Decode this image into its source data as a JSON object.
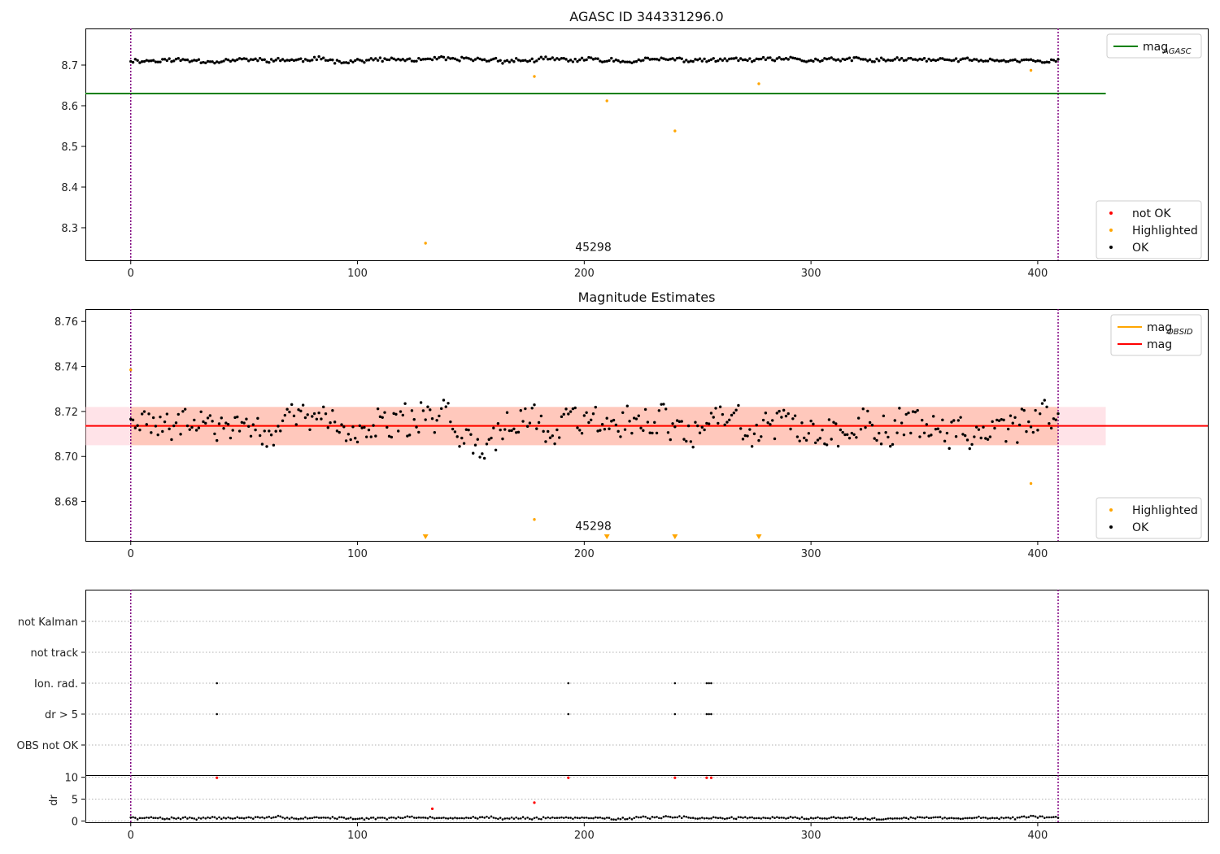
{
  "chart_data": [
    {
      "type": "scatter",
      "title": "AGASC ID 344331296.0",
      "xlim": [
        -20,
        475
      ],
      "ylim": [
        8.22,
        8.79
      ],
      "xticks": [
        0,
        100,
        200,
        300,
        400
      ],
      "xtick_labels": [
        "0",
        "100",
        "200",
        "300",
        "400"
      ],
      "yticks": [
        8.3,
        8.4,
        8.5,
        8.6,
        8.7
      ],
      "ytick_labels": [
        "8.3",
        "8.4",
        "8.5",
        "8.6",
        "8.7"
      ],
      "obs_boundaries": [
        0,
        409
      ],
      "obsid_label": "45298",
      "obsid_label_pos": {
        "x": 204,
        "y": 8.243
      },
      "reference_lines": [
        {
          "name": "mag_AGASC",
          "y": 8.63,
          "x_range": [
            -20,
            430
          ],
          "color": "#008000"
        }
      ],
      "ok_points": {
        "x0": 0,
        "x1": 409,
        "n": 410,
        "base": 8.712,
        "amp": 0.009,
        "ypoints": [
          [
            0,
            8.737
          ],
          [
            178,
            8.7
          ],
          [
            409,
            8.695
          ]
        ]
      },
      "highlighted_points": [
        {
          "x": 130,
          "y": 8.262
        },
        {
          "x": 178,
          "y": 8.672
        },
        {
          "x": 210,
          "y": 8.612
        },
        {
          "x": 240,
          "y": 8.538
        },
        {
          "x": 277,
          "y": 8.654
        },
        {
          "x": 397,
          "y": 8.687
        }
      ],
      "legend_top": [
        {
          "label": "mag",
          "sub": "AGASC",
          "kind": "line",
          "color": "#008000"
        }
      ],
      "legend_bottom": [
        {
          "label": "not OK",
          "kind": "dot",
          "color": "#ff0000"
        },
        {
          "label": "Highlighted",
          "kind": "dot",
          "color": "#ffa500"
        },
        {
          "label": "OK",
          "kind": "dot",
          "color": "#000000"
        }
      ]
    },
    {
      "type": "scatter",
      "title": "Magnitude Estimates",
      "xlim": [
        -20,
        475
      ],
      "ylim": [
        8.6625,
        8.7655
      ],
      "xticks": [
        0,
        100,
        200,
        300,
        400
      ],
      "xtick_labels": [
        "0",
        "100",
        "200",
        "300",
        "400"
      ],
      "yticks": [
        8.68,
        8.7,
        8.72,
        8.74,
        8.76
      ],
      "ytick_labels": [
        "8.68",
        "8.70",
        "8.72",
        "8.74",
        "8.76"
      ],
      "obs_boundaries": [
        0,
        409
      ],
      "obsid_label": "45298",
      "obsid_label_pos": {
        "x": 204,
        "y": 8.666
      },
      "bands": [
        {
          "y0": 8.705,
          "y1": 8.722,
          "x_range": [
            -20,
            430
          ],
          "color": "#ffc0cb",
          "opacity": 0.45
        },
        {
          "y0": 8.705,
          "y1": 8.722,
          "x_range": [
            0,
            409
          ],
          "color": "#ffa07a",
          "opacity": 0.4
        }
      ],
      "reference_lines": [
        {
          "name": "mag_OBSID",
          "y": 8.7136,
          "x_range": [
            0,
            409
          ],
          "color": "#ffa500"
        },
        {
          "name": "mag",
          "y": 8.7136,
          "x_range": [
            -20,
            475
          ],
          "color": "#ff0000"
        }
      ],
      "ok_points": {
        "x0": 0,
        "x1": 409,
        "n": 410,
        "base": 8.7136,
        "amp": 0.013
      },
      "highlighted_points": [
        {
          "x": 0,
          "y": 8.7385
        },
        {
          "x": 178,
          "y": 8.672
        },
        {
          "x": 397,
          "y": 8.688
        }
      ],
      "offscale_markers": [
        130,
        210,
        240,
        277
      ],
      "legend_top": [
        {
          "label": "mag",
          "sub": "OBSID",
          "kind": "line",
          "color": "#ffa500"
        },
        {
          "label": "mag",
          "sub": "",
          "kind": "line",
          "color": "#ff0000"
        }
      ],
      "legend_bottom": [
        {
          "label": "Highlighted",
          "kind": "dot",
          "color": "#ffa500"
        },
        {
          "label": "OK",
          "kind": "dot",
          "color": "#000000"
        }
      ]
    },
    {
      "type": "scatter",
      "title": "",
      "xlim": [
        -20,
        475
      ],
      "categories": [
        "not Kalman",
        "not track",
        "Ion. rad.",
        "dr > 5",
        "OBS not OK"
      ],
      "obs_boundaries": [
        0,
        409
      ],
      "flags": [
        {
          "category": "Ion. rad.",
          "x": [
            38,
            193,
            240,
            254,
            255,
            256
          ]
        },
        {
          "category": "dr > 5",
          "x": [
            38,
            193,
            240,
            254,
            255,
            256
          ]
        }
      ]
    },
    {
      "type": "scatter",
      "title": "",
      "ylabel": "dr",
      "xlim": [
        -20,
        475
      ],
      "ylim": [
        -0.3,
        10.5
      ],
      "xticks": [
        0,
        100,
        200,
        300,
        400
      ],
      "xtick_labels": [
        "0",
        "100",
        "200",
        "300",
        "400"
      ],
      "yticks": [
        0,
        5,
        10
      ],
      "ytick_labels": [
        "0",
        "5",
        "10"
      ],
      "obs_boundaries": [
        0,
        409
      ],
      "dr_points": {
        "x0": 0,
        "x1": 409,
        "n": 410,
        "base": 0.7,
        "amp": 0.45
      },
      "red_points": [
        {
          "x": 38,
          "y": 9.9
        },
        {
          "x": 133,
          "y": 2.8
        },
        {
          "x": 178,
          "y": 4.2
        },
        {
          "x": 193,
          "y": 9.9
        },
        {
          "x": 240,
          "y": 9.9
        },
        {
          "x": 254,
          "y": 9.9
        },
        {
          "x": 256,
          "y": 9.9
        }
      ]
    }
  ],
  "colors": {
    "ok": "#000000",
    "highlighted": "#ffa500",
    "not_ok": "#ff0000",
    "boundary": "#800080",
    "grid": "#b0b0b0"
  }
}
